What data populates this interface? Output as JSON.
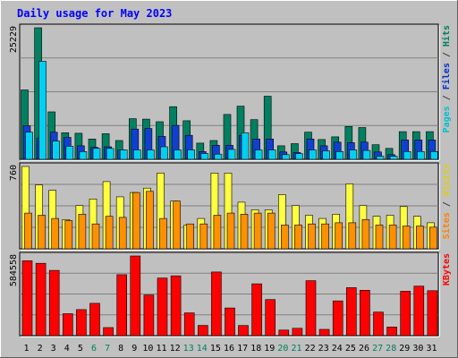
{
  "title": "Daily usage for May 2023",
  "chart_data": {
    "type": "bar",
    "title": "Daily usage for May 2023",
    "categories": [
      "1",
      "2",
      "3",
      "4",
      "5",
      "6",
      "7",
      "8",
      "9",
      "10",
      "11",
      "12",
      "13",
      "14",
      "15",
      "16",
      "17",
      "18",
      "19",
      "20",
      "21",
      "22",
      "23",
      "24",
      "25",
      "26",
      "27",
      "28",
      "29",
      "30",
      "31"
    ],
    "weekend_days": [
      6,
      7,
      13,
      14,
      20,
      21,
      27,
      28
    ],
    "panels": [
      {
        "id": "hits",
        "scale_label": "25229",
        "ymax": 25229,
        "right_label": [
          {
            "text": "Pages",
            "color": "#00c0d0"
          },
          {
            "text": " / ",
            "color": "#404040"
          },
          {
            "text": "Files",
            "color": "#0030d0"
          },
          {
            "text": " / ",
            "color": "#404040"
          },
          {
            "text": "Hits",
            "color": "#00805a"
          }
        ],
        "series": [
          {
            "name": "Hits",
            "color": "#008060",
            "values": [
              13300,
              25229,
              9100,
              5100,
              5000,
              3900,
              4900,
              3600,
              7800,
              7700,
              7200,
              10100,
              7400,
              3100,
              3600,
              8600,
              10200,
              7600,
              12100,
              2600,
              3000,
              5200,
              3800,
              4300,
              6300,
              6100,
              2800,
              2100,
              5300,
              5300,
              5300
            ]
          },
          {
            "name": "Files",
            "color": "#1040d0",
            "values": [
              6400,
              4000,
              5200,
              4200,
              2600,
              2300,
              2400,
              1800,
              5800,
              5900,
              4400,
              6500,
              4600,
              1500,
              2700,
              2700,
              4600,
              3900,
              3900,
              1400,
              1300,
              3900,
              2600,
              3300,
              3200,
              3300,
              1400,
              900,
              3700,
              3700,
              3700
            ]
          },
          {
            "name": "Pages",
            "color": "#00d0f0",
            "values": [
              5200,
              18800,
              3500,
              2500,
              1500,
              2100,
              2100,
              1800,
              1800,
              1800,
              2400,
              1800,
              1800,
              1100,
              1000,
              1900,
              5100,
              1800,
              1800,
              900,
              1100,
              1800,
              1600,
              1500,
              1800,
              1700,
              600,
              600,
              1500,
              1500,
              1500
            ]
          }
        ]
      },
      {
        "id": "visits",
        "scale_label": "760",
        "ymax": 760,
        "right_label": [
          {
            "text": "Sites",
            "color": "#ff8000"
          },
          {
            "text": " / ",
            "color": "#404040"
          },
          {
            "text": "Visits",
            "color": "#e0d000"
          }
        ],
        "series": [
          {
            "name": "Visits",
            "color": "#ffff40",
            "values": [
              760,
              590,
              540,
              270,
              400,
              460,
              620,
              480,
              520,
              560,
              700,
              440,
              220,
              280,
              700,
              700,
              430,
              360,
              360,
              500,
              400,
              310,
              280,
              320,
              600,
              400,
              300,
              310,
              390,
              300,
              240
            ]
          },
          {
            "name": "Sites",
            "color": "#ff9000",
            "values": [
              330,
              310,
              280,
              260,
              320,
              230,
              300,
              290,
              520,
              530,
              280,
              440,
              230,
              230,
              310,
              330,
              320,
              330,
              330,
              220,
              220,
              230,
              230,
              240,
              240,
              270,
              220,
              220,
              210,
              210,
              200
            ]
          }
        ]
      },
      {
        "id": "kbytes",
        "scale_label": "584558",
        "ymax": 584558,
        "right_label": [
          {
            "text": "KBytes",
            "color": "#ff0000"
          }
        ],
        "series": [
          {
            "name": "KBytes",
            "color": "#ff0000",
            "values": [
              550000,
              531000,
              479000,
              161000,
              191000,
              237000,
              59000,
              447000,
              584558,
              298000,
              422000,
              439000,
              167000,
              75000,
              467000,
              203000,
              74000,
              380000,
              265000,
              41000,
              54000,
              403000,
              46000,
              255000,
              352000,
              333000,
              173000,
              63000,
              326000,
              363000,
              330000
            ]
          }
        ]
      }
    ]
  },
  "colors": {
    "background": "#c0c0c0",
    "title": "#0000ff",
    "day_label": "#000000",
    "weekend_label": "#00805a",
    "scale_label": "#000000",
    "grid": "#808080"
  }
}
